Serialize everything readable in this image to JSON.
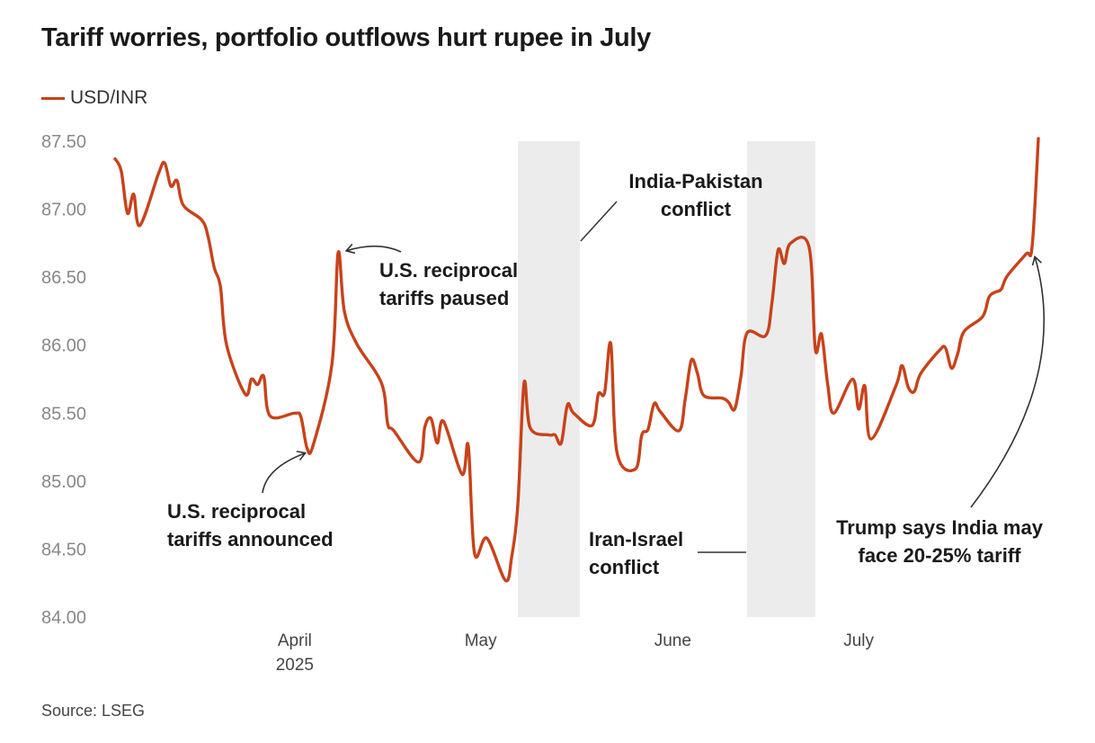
{
  "chart_data": {
    "type": "line",
    "title": "Tariff worries, portfolio outflows hurt rupee in July",
    "source": "Source: LSEG",
    "series": [
      {
        "name": "USD/INR",
        "color": "#c8421a",
        "values": [
          [
            "2025-03-03",
            87.37
          ],
          [
            "2025-03-04",
            87.28
          ],
          [
            "2025-03-05",
            86.97
          ],
          [
            "2025-03-06",
            87.11
          ],
          [
            "2025-03-07",
            86.88
          ],
          [
            "2025-03-10",
            87.26
          ],
          [
            "2025-03-11",
            87.34
          ],
          [
            "2025-03-12",
            87.17
          ],
          [
            "2025-03-13",
            87.21
          ],
          [
            "2025-03-14",
            87.03
          ],
          [
            "2025-03-17",
            86.92
          ],
          [
            "2025-03-18",
            86.8
          ],
          [
            "2025-03-19",
            86.57
          ],
          [
            "2025-03-20",
            86.43
          ],
          [
            "2025-03-21",
            86.0
          ],
          [
            "2025-03-24",
            85.64
          ],
          [
            "2025-03-25",
            85.75
          ],
          [
            "2025-03-26",
            85.71
          ],
          [
            "2025-03-27",
            85.77
          ],
          [
            "2025-03-28",
            85.48
          ],
          [
            "2025-04-01",
            85.5
          ],
          [
            "2025-04-02",
            85.47
          ],
          [
            "2025-04-03",
            85.24
          ],
          [
            "2025-04-04",
            85.27
          ],
          [
            "2025-04-07",
            85.86
          ],
          [
            "2025-04-08",
            86.68
          ],
          [
            "2025-04-09",
            86.25
          ],
          [
            "2025-04-11",
            86.01
          ],
          [
            "2025-04-15",
            85.72
          ],
          [
            "2025-04-16",
            85.42
          ],
          [
            "2025-04-17",
            85.37
          ],
          [
            "2025-04-21",
            85.14
          ],
          [
            "2025-04-22",
            85.4
          ],
          [
            "2025-04-23",
            85.46
          ],
          [
            "2025-04-24",
            85.28
          ],
          [
            "2025-04-25",
            85.44
          ],
          [
            "2025-04-28",
            85.05
          ],
          [
            "2025-04-29",
            85.26
          ],
          [
            "2025-04-30",
            84.47
          ],
          [
            "2025-05-02",
            84.58
          ],
          [
            "2025-05-05",
            84.27
          ],
          [
            "2025-05-06",
            84.44
          ],
          [
            "2025-05-07",
            84.83
          ],
          [
            "2025-05-08",
            85.72
          ],
          [
            "2025-05-09",
            85.39
          ],
          [
            "2025-05-12",
            85.34
          ],
          [
            "2025-05-13",
            85.34
          ],
          [
            "2025-05-14",
            85.28
          ],
          [
            "2025-05-15",
            85.56
          ],
          [
            "2025-05-16",
            85.5
          ],
          [
            "2025-05-19",
            85.41
          ],
          [
            "2025-05-20",
            85.64
          ],
          [
            "2025-05-21",
            85.65
          ],
          [
            "2025-05-22",
            86.01
          ],
          [
            "2025-05-23",
            85.21
          ],
          [
            "2025-05-26",
            85.09
          ],
          [
            "2025-05-27",
            85.34
          ],
          [
            "2025-05-28",
            85.38
          ],
          [
            "2025-05-29",
            85.57
          ],
          [
            "2025-05-30",
            85.51
          ],
          [
            "2025-06-02",
            85.37
          ],
          [
            "2025-06-03",
            85.6
          ],
          [
            "2025-06-04",
            85.89
          ],
          [
            "2025-06-05",
            85.79
          ],
          [
            "2025-06-06",
            85.63
          ],
          [
            "2025-06-09",
            85.61
          ],
          [
            "2025-06-10",
            85.58
          ],
          [
            "2025-06-11",
            85.53
          ],
          [
            "2025-06-12",
            85.77
          ],
          [
            "2025-06-13",
            86.09
          ],
          [
            "2025-06-16",
            86.07
          ],
          [
            "2025-06-17",
            86.31
          ],
          [
            "2025-06-18",
            86.7
          ],
          [
            "2025-06-19",
            86.6
          ],
          [
            "2025-06-20",
            86.75
          ],
          [
            "2025-06-23",
            86.72
          ],
          [
            "2025-06-24",
            85.97
          ],
          [
            "2025-06-25",
            86.08
          ],
          [
            "2025-06-26",
            85.71
          ],
          [
            "2025-06-27",
            85.5
          ],
          [
            "2025-06-30",
            85.75
          ],
          [
            "2025-07-01",
            85.53
          ],
          [
            "2025-07-02",
            85.7
          ],
          [
            "2025-07-03",
            85.31
          ],
          [
            "2025-07-07",
            85.7
          ],
          [
            "2025-07-08",
            85.85
          ],
          [
            "2025-07-09",
            85.69
          ],
          [
            "2025-07-10",
            85.66
          ],
          [
            "2025-07-11",
            85.79
          ],
          [
            "2025-07-14",
            85.96
          ],
          [
            "2025-07-15",
            85.98
          ],
          [
            "2025-07-16",
            85.83
          ],
          [
            "2025-07-17",
            85.94
          ],
          [
            "2025-07-18",
            86.1
          ],
          [
            "2025-07-21",
            86.21
          ],
          [
            "2025-07-22",
            86.35
          ],
          [
            "2025-07-23",
            86.39
          ],
          [
            "2025-07-24",
            86.41
          ],
          [
            "2025-07-25",
            86.51
          ],
          [
            "2025-07-28",
            86.67
          ],
          [
            "2025-07-29",
            86.73
          ],
          [
            "2025-07-30",
            87.52
          ]
        ]
      }
    ],
    "ylim": [
      84.0,
      87.5
    ],
    "yticks": [
      "84.00",
      "84.50",
      "85.00",
      "85.50",
      "86.00",
      "86.50",
      "87.00",
      "87.50"
    ],
    "xlim": [
      "2025-03-03",
      "2025-07-30"
    ],
    "xticks": [
      {
        "date": "2025-04-01",
        "label": "April",
        "sublabel": "2025"
      },
      {
        "date": "2025-05-01",
        "label": "May"
      },
      {
        "date": "2025-06-01",
        "label": "June"
      },
      {
        "date": "2025-07-01",
        "label": "July"
      }
    ],
    "shaded_periods": [
      {
        "start": "2025-05-07",
        "end": "2025-05-17",
        "label_lines": [
          "India-Pakistan",
          "conflict"
        ]
      },
      {
        "start": "2025-06-13",
        "end": "2025-06-24",
        "label_lines": [
          "Iran-Israel",
          "conflict"
        ]
      }
    ],
    "annotations": [
      {
        "date": "2025-04-03",
        "value": 85.24,
        "lines": [
          "U.S. reciprocal",
          "tariffs announced"
        ]
      },
      {
        "date": "2025-04-08",
        "value": 86.68,
        "lines": [
          "U.S. reciprocal",
          "tariffs paused"
        ]
      },
      {
        "date": "2025-07-29",
        "value": 86.73,
        "lines": [
          "Trump says India may",
          "face 20-25% tariff"
        ]
      }
    ],
    "legend": "top-left",
    "grid": false
  }
}
